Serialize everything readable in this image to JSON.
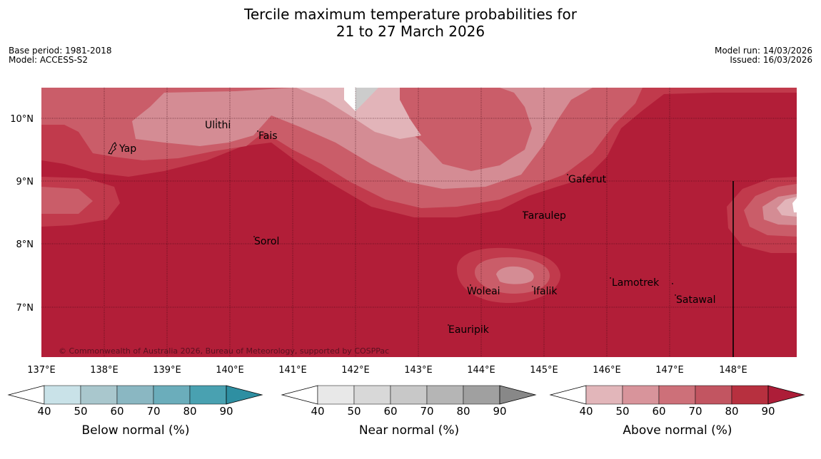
{
  "title": {
    "line1": "Tercile maximum temperature probabilities for",
    "line2": "21 to 27 March 2026"
  },
  "meta_left": {
    "base_period": "Base period: 1981-2018",
    "model": "Model: ACCESS-S2"
  },
  "meta_right": {
    "model_run": "Model run: 14/03/2026",
    "issued": "Issued: 16/03/2026"
  },
  "map": {
    "lat_labels": [
      "10°N",
      "9°N",
      "8°N",
      "7°N"
    ],
    "lon_labels": [
      "137°E",
      "138°E",
      "139°E",
      "140°E",
      "141°E",
      "142°E",
      "143°E",
      "144°E",
      "145°E",
      "146°E",
      "147°E",
      "148°E"
    ],
    "places": [
      "Yap",
      "Ulithi",
      "Fais",
      "Gaferut",
      "Faraulep",
      "Sorol",
      "Lamotrek",
      "Woleai",
      "Ifalik",
      "Satawal",
      "Eauripik"
    ],
    "copyright": "© Commonwealth of Australia 2026, Bureau of Meteorology, supported by COSPPac"
  },
  "colorbars": [
    {
      "label": "Below normal (%)",
      "ticks": [
        "40",
        "50",
        "60",
        "70",
        "80",
        "90"
      ],
      "colors": [
        "#ffffff",
        "#c9e2e8",
        "#a9c7cd",
        "#8ab7c2",
        "#6badbb",
        "#49a1b1",
        "#2e8fa2"
      ]
    },
    {
      "label": "Near normal (%)",
      "ticks": [
        "40",
        "50",
        "60",
        "70",
        "80",
        "90"
      ],
      "colors": [
        "#ffffff",
        "#e8e8e8",
        "#d8d8d8",
        "#c8c8c8",
        "#b5b5b5",
        "#a0a0a0",
        "#888888"
      ]
    },
    {
      "label": "Above normal (%)",
      "ticks": [
        "40",
        "50",
        "60",
        "70",
        "80",
        "90"
      ],
      "colors": [
        "#ffffff",
        "#e2b6ba",
        "#d8949b",
        "#cd7079",
        "#c25561",
        "#b7303f",
        "#ad1d38"
      ]
    }
  ],
  "palette": {
    "c90": "#b21e38",
    "c80": "#c13a4c",
    "c70": "#ca5d69",
    "c60": "#d48c94",
    "c50": "#e2b4b9",
    "near60": "#cccccc"
  }
}
